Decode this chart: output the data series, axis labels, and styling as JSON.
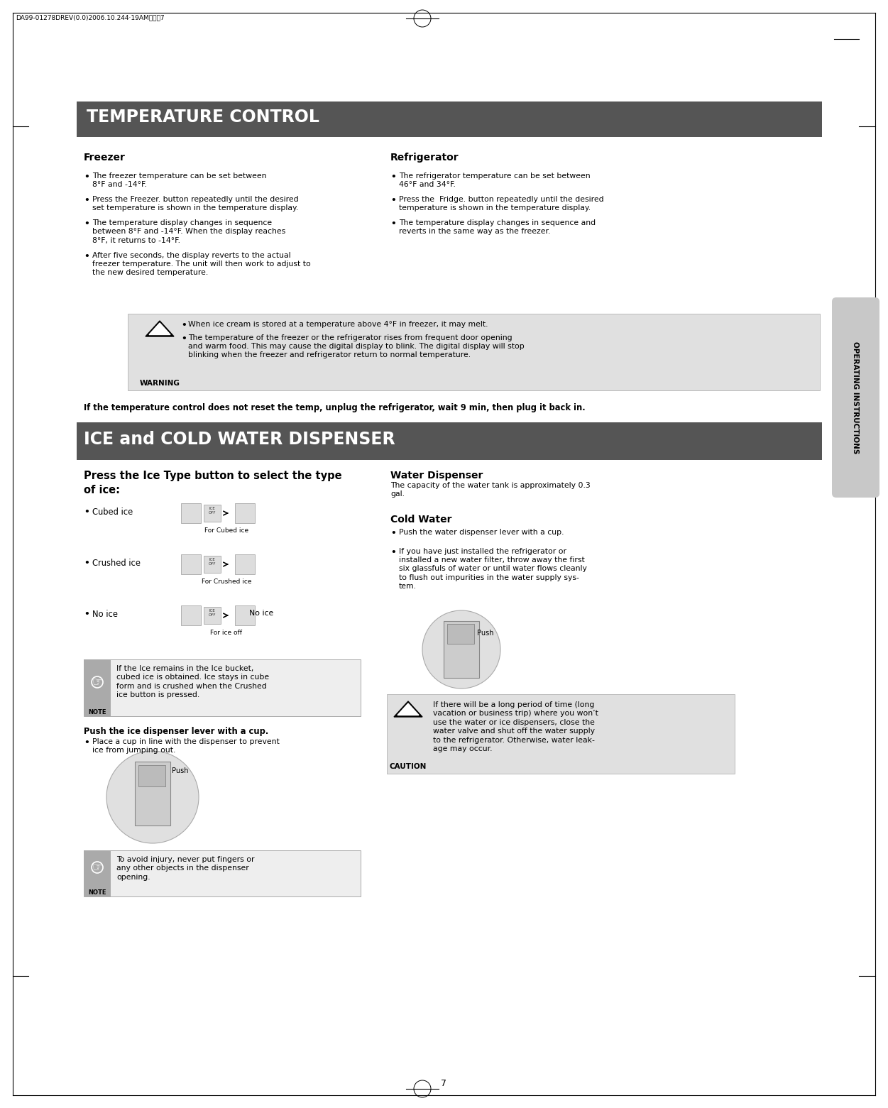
{
  "page_bg": "#ffffff",
  "header_text": "DA99-01278DREV(0.0)2006.10.244·19AM페이짇7",
  "section1_title": "TEMPERATURE CONTROL",
  "section1_title_bg": "#555555",
  "section1_title_color": "#ffffff",
  "freezer_heading": "Freezer",
  "refrigerator_heading": "Refrigerator",
  "freezer_bullets": [
    "The freezer temperature can be set between\n8°F and -14°F.",
    "Press the Freezer. button repeatedly until the desired\nset temperature is shown in the temperature display.",
    "The temperature display changes in sequence\nbetween 8°F and -14°F. When the display reaches\n8°F, it returns to -14°F.",
    "After five seconds, the display reverts to the actual\nfreezer temperature. The unit will then work to adjust to\nthe new desired temperature."
  ],
  "refrigerator_bullets": [
    "The refrigerator temperature can be set between\n46°F and 34°F.",
    "Press the  Fridge. button repeatedly until the desired\ntemperature is shown in the temperature display.",
    "The temperature display changes in sequence and\nreverts in the same way as the freezer."
  ],
  "warning_box_bg": "#e0e0e0",
  "warning_bullets": [
    "When ice cream is stored at a temperature above 4°F in freezer, it may melt.",
    "The temperature of the freezer or the refrigerator rises from frequent door opening\nand warm food. This may cause the digital display to blink. The digital display will stop\nblinking when the freezer and refrigerator return to normal temperature."
  ],
  "warning_label": "WARNING",
  "bold_note": "If the temperature control does not reset the temp, unplug the refrigerator, wait 9 min, then plug it back in.",
  "section2_title": "ICE and COLD WATER DISPENSER",
  "section2_title_bg": "#555555",
  "section2_title_color": "#ffffff",
  "ice_section_heading1": "Press the Ice Type button to select the type",
  "ice_section_heading2": "of ice:",
  "ice_items": [
    "Cubed ice",
    "Crushed ice",
    "No ice"
  ],
  "ice_captions": [
    "For Cubed ice",
    "For Crushed ice",
    "For ice off"
  ],
  "note1_text": "If the Ice remains in the Ice bucket,\ncubed ice is obtained. Ice stays in cube\nform and is crushed when the Crushed\nice button is pressed.",
  "note1_label": "NOTE",
  "push_caption_left": "Push",
  "push_caption_right": "Push",
  "push_heading": "Push the ice dispenser lever with a cup.",
  "push_bullet": "Place a cup in line with the dispenser to prevent\nice from jumping out.",
  "note2_text": "To avoid injury, never put fingers or\nany other objects in the dispenser\nopening.",
  "note2_label": "NOTE",
  "water_dispenser_heading": "Water Dispenser",
  "water_tank_text": "The capacity of the water tank is approximately 0.3\ngal.",
  "cold_water_heading": "Cold Water",
  "cold_water_bullets": [
    "Push the water dispenser lever with a cup.",
    "If you have just installed the refrigerator or\ninstalled a new water filter, throw away the first\nsix glassfuls of water or until water flows cleanly\nto flush out impurities in the water supply sys-\ntem."
  ],
  "caution_text": "If there will be a long period of time (long\nvacation or business trip) where you won’t\nuse the water or ice dispensers, close the\nwater valve and shut off the water supply\nto the refrigerator. Otherwise, water leak-\nage may occur.",
  "caution_label": "CAUTION",
  "sidebar_text": "OPERATING INSTRUCTIONS",
  "sidebar_bg": "#c8c8c8",
  "page_number": "7",
  "body_fontsize": 7.8,
  "heading_fontsize": 10,
  "section_title_fontsize": 17
}
